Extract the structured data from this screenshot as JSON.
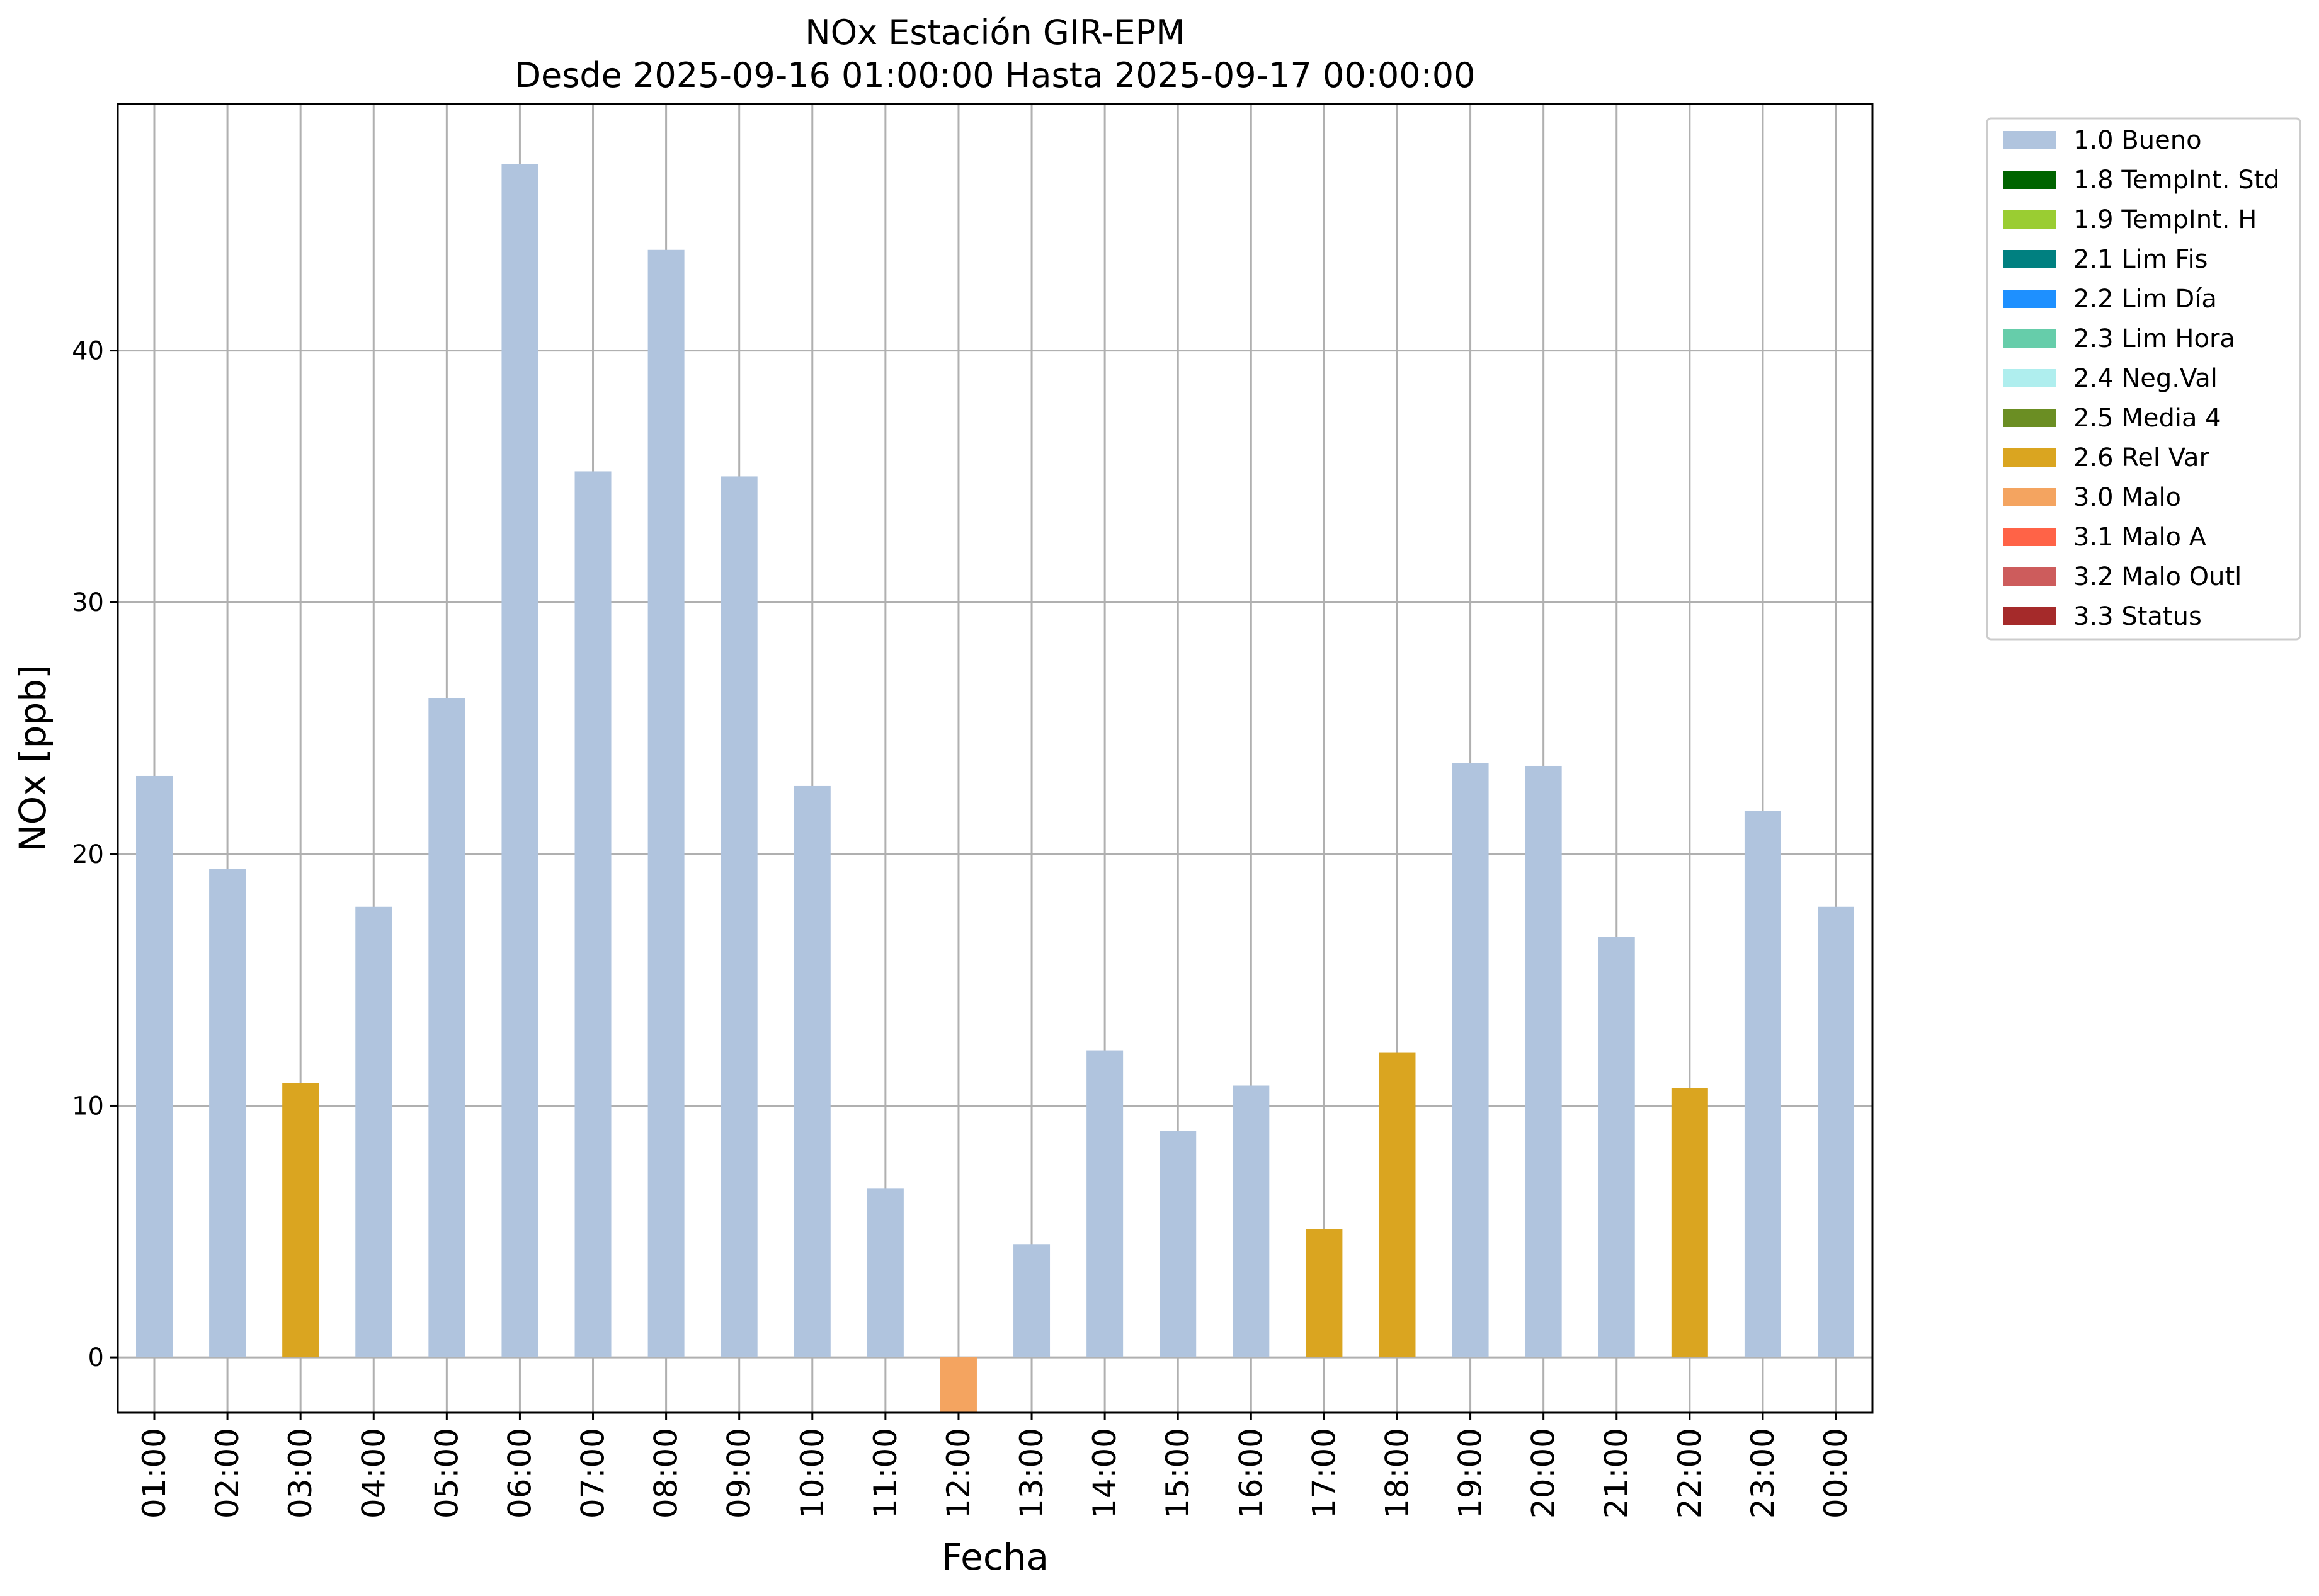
{
  "chart_data": {
    "type": "bar",
    "title": "NOx Estación GIR-EPM",
    "subtitle": "Desde 2025-09-16 01:00:00 Hasta 2025-09-17 00:00:00",
    "xlabel": "Fecha",
    "ylabel": "NOx [ppb]",
    "ylim": [
      -2.2,
      49.8
    ],
    "yticks": [
      0,
      10,
      20,
      30,
      40
    ],
    "grid": true,
    "legend_position": "outside-top-right",
    "categories": [
      "01:00",
      "02:00",
      "03:00",
      "04:00",
      "05:00",
      "06:00",
      "07:00",
      "08:00",
      "09:00",
      "10:00",
      "11:00",
      "12:00",
      "13:00",
      "14:00",
      "15:00",
      "16:00",
      "17:00",
      "18:00",
      "19:00",
      "20:00",
      "21:00",
      "22:00",
      "23:00",
      "00:00"
    ],
    "values": [
      23.1,
      19.4,
      10.9,
      17.9,
      26.2,
      47.4,
      35.2,
      44.0,
      35.0,
      22.7,
      6.7,
      -2.2,
      4.5,
      12.2,
      9.0,
      10.8,
      5.1,
      12.1,
      23.6,
      23.5,
      16.7,
      10.7,
      21.7,
      17.9
    ],
    "flags": [
      "1.0 Bueno",
      "1.0 Bueno",
      "2.6 Rel Var",
      "1.0 Bueno",
      "1.0 Bueno",
      "1.0 Bueno",
      "1.0 Bueno",
      "1.0 Bueno",
      "1.0 Bueno",
      "1.0 Bueno",
      "1.0 Bueno",
      "3.0 Malo",
      "1.0 Bueno",
      "1.0 Bueno",
      "1.0 Bueno",
      "1.0 Bueno",
      "2.6 Rel Var",
      "2.6 Rel Var",
      "1.0 Bueno",
      "1.0 Bueno",
      "1.0 Bueno",
      "2.6 Rel Var",
      "1.0 Bueno",
      "1.0 Bueno"
    ],
    "legend": [
      {
        "label": "1.0 Bueno",
        "color": "#b0c4de"
      },
      {
        "label": "1.8 TempInt. Std",
        "color": "#006400"
      },
      {
        "label": "1.9 TempInt. H",
        "color": "#9acd32"
      },
      {
        "label": "2.1 Lim Fis",
        "color": "#008080"
      },
      {
        "label": "2.2 Lim Día",
        "color": "#1e90ff"
      },
      {
        "label": "2.3 Lim Hora",
        "color": "#66cdaa"
      },
      {
        "label": "2.4 Neg.Val",
        "color": "#afeeee"
      },
      {
        "label": "2.5 Media 4",
        "color": "#6b8e23"
      },
      {
        "label": "2.6 Rel Var",
        "color": "#daa520"
      },
      {
        "label": "3.0 Malo",
        "color": "#f4a460"
      },
      {
        "label": "3.1 Malo A",
        "color": "#ff6347"
      },
      {
        "label": "3.2 Malo Outl",
        "color": "#cd5c5c"
      },
      {
        "label": "3.3 Status",
        "color": "#a52a2a"
      }
    ]
  }
}
